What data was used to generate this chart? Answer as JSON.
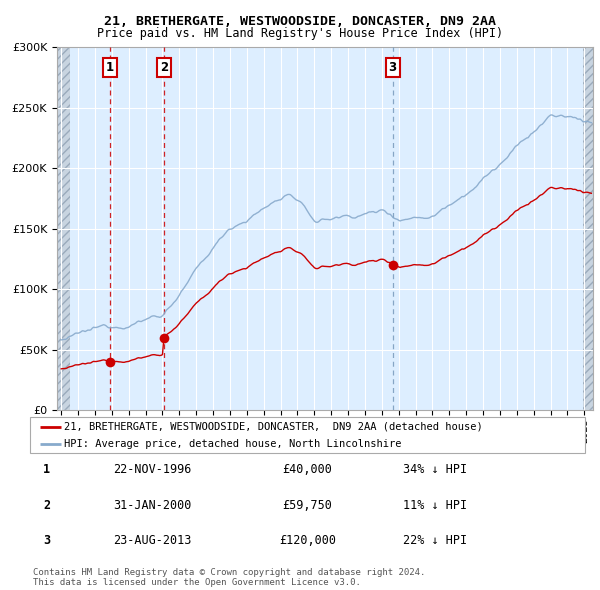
{
  "title1": "21, BRETHERGATE, WESTWOODSIDE, DONCASTER, DN9 2AA",
  "title2": "Price paid vs. HM Land Registry's House Price Index (HPI)",
  "legend_line1": "21, BRETHERGATE, WESTWOODSIDE, DONCASTER,  DN9 2AA (detached house)",
  "legend_line2": "HPI: Average price, detached house, North Lincolnshire",
  "price_paid_color": "#cc0000",
  "hpi_color": "#88aacc",
  "sale_dates_decimal": [
    1996.896,
    2000.083,
    2013.644
  ],
  "sale_prices": [
    40000,
    59750,
    120000
  ],
  "sale_labels": [
    "1",
    "2",
    "3"
  ],
  "vline_colors": [
    "#cc0000",
    "#cc0000",
    "#7799bb"
  ],
  "vline_styles": [
    "--",
    "--",
    "--"
  ],
  "table_rows": [
    [
      "1",
      "22-NOV-1996",
      "£40,000",
      "34% ↓ HPI"
    ],
    [
      "2",
      "31-JAN-2000",
      "£59,750",
      "11% ↓ HPI"
    ],
    [
      "3",
      "23-AUG-2013",
      "£120,000",
      "22% ↓ HPI"
    ]
  ],
  "footnote1": "Contains HM Land Registry data © Crown copyright and database right 2024.",
  "footnote2": "This data is licensed under the Open Government Licence v3.0.",
  "ylim": [
    0,
    300000
  ],
  "yticks": [
    0,
    50000,
    100000,
    150000,
    200000,
    250000,
    300000
  ],
  "background_color": "#ffffff",
  "plot_bg_color": "#ddeeff",
  "xlim_start": 1993.75,
  "xlim_end": 2025.5,
  "hatch_end": 1994.5,
  "hatch_start_r": 2024.917
}
